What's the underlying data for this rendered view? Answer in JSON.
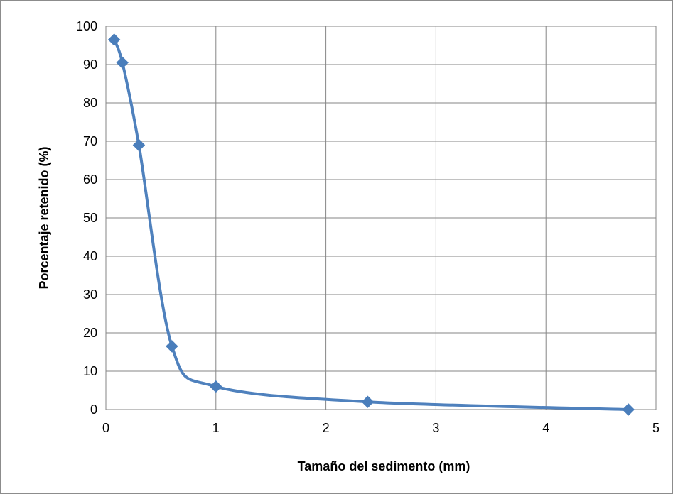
{
  "chart_data": {
    "type": "line",
    "title": "",
    "xlabel": "Tamaño del sedimento (mm)",
    "ylabel": "Porcentaje retenido (%)",
    "xlim": [
      0,
      5
    ],
    "ylim": [
      0,
      100
    ],
    "x_ticks": [
      0,
      1,
      2,
      3,
      4,
      5
    ],
    "y_ticks": [
      0,
      10,
      20,
      30,
      40,
      50,
      60,
      70,
      80,
      90,
      100
    ],
    "grid": true,
    "legend": "none",
    "smooth": true,
    "marker": "diamond",
    "series": [
      {
        "color": "#4f81bd",
        "marker_color": "#4a7ebb",
        "points": [
          {
            "x": 0.075,
            "y": 96.5
          },
          {
            "x": 0.15,
            "y": 90.5
          },
          {
            "x": 0.3,
            "y": 69.0
          },
          {
            "x": 0.6,
            "y": 16.5
          },
          {
            "x": 1.0,
            "y": 6.0
          },
          {
            "x": 2.38,
            "y": 2.0
          },
          {
            "x": 4.75,
            "y": 0.0
          }
        ]
      }
    ]
  }
}
